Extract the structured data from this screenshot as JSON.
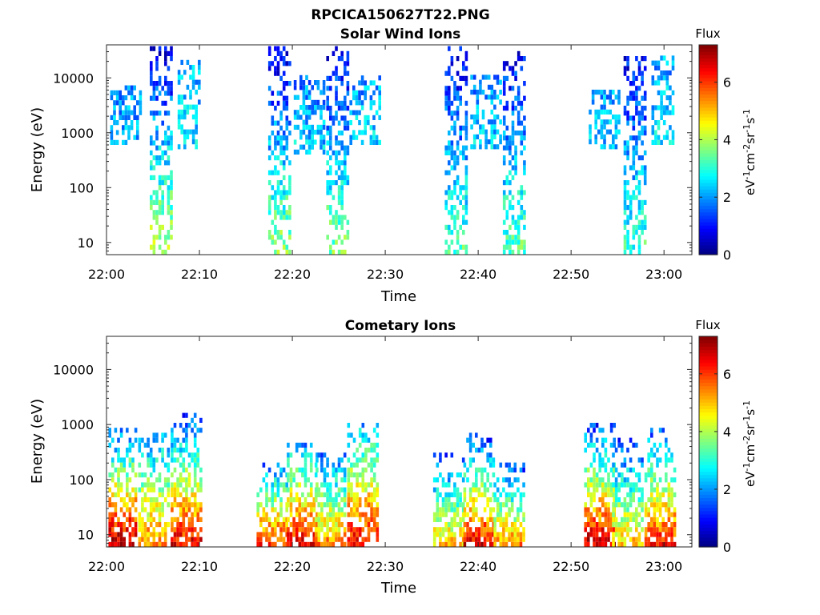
{
  "figure": {
    "title": "RPCICA150627T22.PNG"
  },
  "colorbar": {
    "title": "Flux",
    "unit_base": "eV",
    "unit_cm": "cm",
    "unit_sr": "sr",
    "unit_s": "s",
    "neg1": "-1",
    "neg2": "-2",
    "range": [
      0,
      7.3
    ],
    "ticks": [
      "0",
      "2",
      "4",
      "6"
    ],
    "colormap": "jet"
  },
  "chart_data": [
    {
      "type": "heatmap",
      "title": "Solar Wind Ions",
      "xlabel": "Time",
      "ylabel": "Energy (eV)",
      "xlim": [
        "22:00",
        "23:03"
      ],
      "ylim": [
        6,
        40000
      ],
      "yscale": "log",
      "xticks": [
        "22:00",
        "22:10",
        "22:20",
        "22:30",
        "22:40",
        "22:50",
        "23:00"
      ],
      "yticks": [
        "10",
        "100",
        "1000",
        "10000"
      ],
      "bursts": [
        {
          "center": "22:05:45",
          "emin": 6,
          "emax": 40000,
          "flux_low": 4.2,
          "flux_high": 0.6
        },
        {
          "center": "22:08:45",
          "emin": 500,
          "emax": 20000,
          "flux_low": 2.5,
          "flux_high": 2.2
        },
        {
          "center": "22:02:00",
          "emin": 600,
          "emax": 6000,
          "flux_low": 2.2,
          "flux_high": 2.0
        },
        {
          "center": "22:18:30",
          "emin": 6,
          "emax": 35000,
          "flux_low": 3.8,
          "flux_high": 0.7
        },
        {
          "center": "22:21:45",
          "emin": 400,
          "emax": 10000,
          "flux_low": 2.4,
          "flux_high": 1.8
        },
        {
          "center": "22:24:45",
          "emin": 6,
          "emax": 35000,
          "flux_low": 3.6,
          "flux_high": 0.8
        },
        {
          "center": "22:27:45",
          "emin": 600,
          "emax": 10000,
          "flux_low": 2.4,
          "flux_high": 2.0
        },
        {
          "center": "22:37:30",
          "emin": 6,
          "emax": 40000,
          "flux_low": 3.3,
          "flux_high": 0.7
        },
        {
          "center": "22:40:45",
          "emin": 500,
          "emax": 10000,
          "flux_low": 2.4,
          "flux_high": 1.8
        },
        {
          "center": "22:43:45",
          "emin": 6,
          "emax": 30000,
          "flux_low": 3.4,
          "flux_high": 0.8
        },
        {
          "center": "22:53:30",
          "emin": 500,
          "emax": 6000,
          "flux_low": 2.3,
          "flux_high": 2.0
        },
        {
          "center": "22:56:45",
          "emin": 6,
          "emax": 30000,
          "flux_low": 3.2,
          "flux_high": 0.8
        },
        {
          "center": "22:59:45",
          "emin": 600,
          "emax": 25000,
          "flux_low": 2.6,
          "flux_high": 2.0
        }
      ]
    },
    {
      "type": "heatmap",
      "title": "Cometary Ions",
      "xlabel": "Time",
      "ylabel": "Energy (eV)",
      "xlim": [
        "22:00",
        "23:03"
      ],
      "ylim": [
        6,
        40000
      ],
      "yscale": "log",
      "xticks": [
        "22:00",
        "22:10",
        "22:20",
        "22:30",
        "22:40",
        "22:50",
        "23:00"
      ],
      "yticks": [
        "10",
        "100",
        "1000",
        "10000"
      ],
      "bursts": [
        {
          "center": "22:01:30",
          "emin": 6,
          "emax": 800,
          "flux_low": 7.0,
          "flux_high": 1.5
        },
        {
          "center": "22:05:00",
          "emin": 6,
          "emax": 600,
          "flux_low": 5.5,
          "flux_high": 2.0
        },
        {
          "center": "22:08:30",
          "emin": 6,
          "emax": 1500,
          "flux_low": 6.5,
          "flux_high": 1.2
        },
        {
          "center": "22:17:45",
          "emin": 6,
          "emax": 200,
          "flux_low": 6.2,
          "flux_high": 1.5
        },
        {
          "center": "22:21:00",
          "emin": 6,
          "emax": 400,
          "flux_low": 6.5,
          "flux_high": 2.0
        },
        {
          "center": "22:24:00",
          "emin": 6,
          "emax": 300,
          "flux_low": 5.5,
          "flux_high": 1.5
        },
        {
          "center": "22:27:30",
          "emin": 6,
          "emax": 900,
          "flux_low": 6.5,
          "flux_high": 2.2
        },
        {
          "center": "22:36:45",
          "emin": 6,
          "emax": 300,
          "flux_low": 5.0,
          "flux_high": 1.0
        },
        {
          "center": "22:40:00",
          "emin": 6,
          "emax": 600,
          "flux_low": 6.5,
          "flux_high": 1.2
        },
        {
          "center": "22:43:15",
          "emin": 6,
          "emax": 200,
          "flux_low": 5.5,
          "flux_high": 1.0
        },
        {
          "center": "22:53:00",
          "emin": 6,
          "emax": 1200,
          "flux_low": 6.8,
          "flux_high": 1.0
        },
        {
          "center": "22:56:00",
          "emin": 6,
          "emax": 500,
          "flux_low": 5.0,
          "flux_high": 1.2
        },
        {
          "center": "22:59:30",
          "emin": 6,
          "emax": 800,
          "flux_low": 6.2,
          "flux_high": 1.5
        }
      ]
    }
  ]
}
